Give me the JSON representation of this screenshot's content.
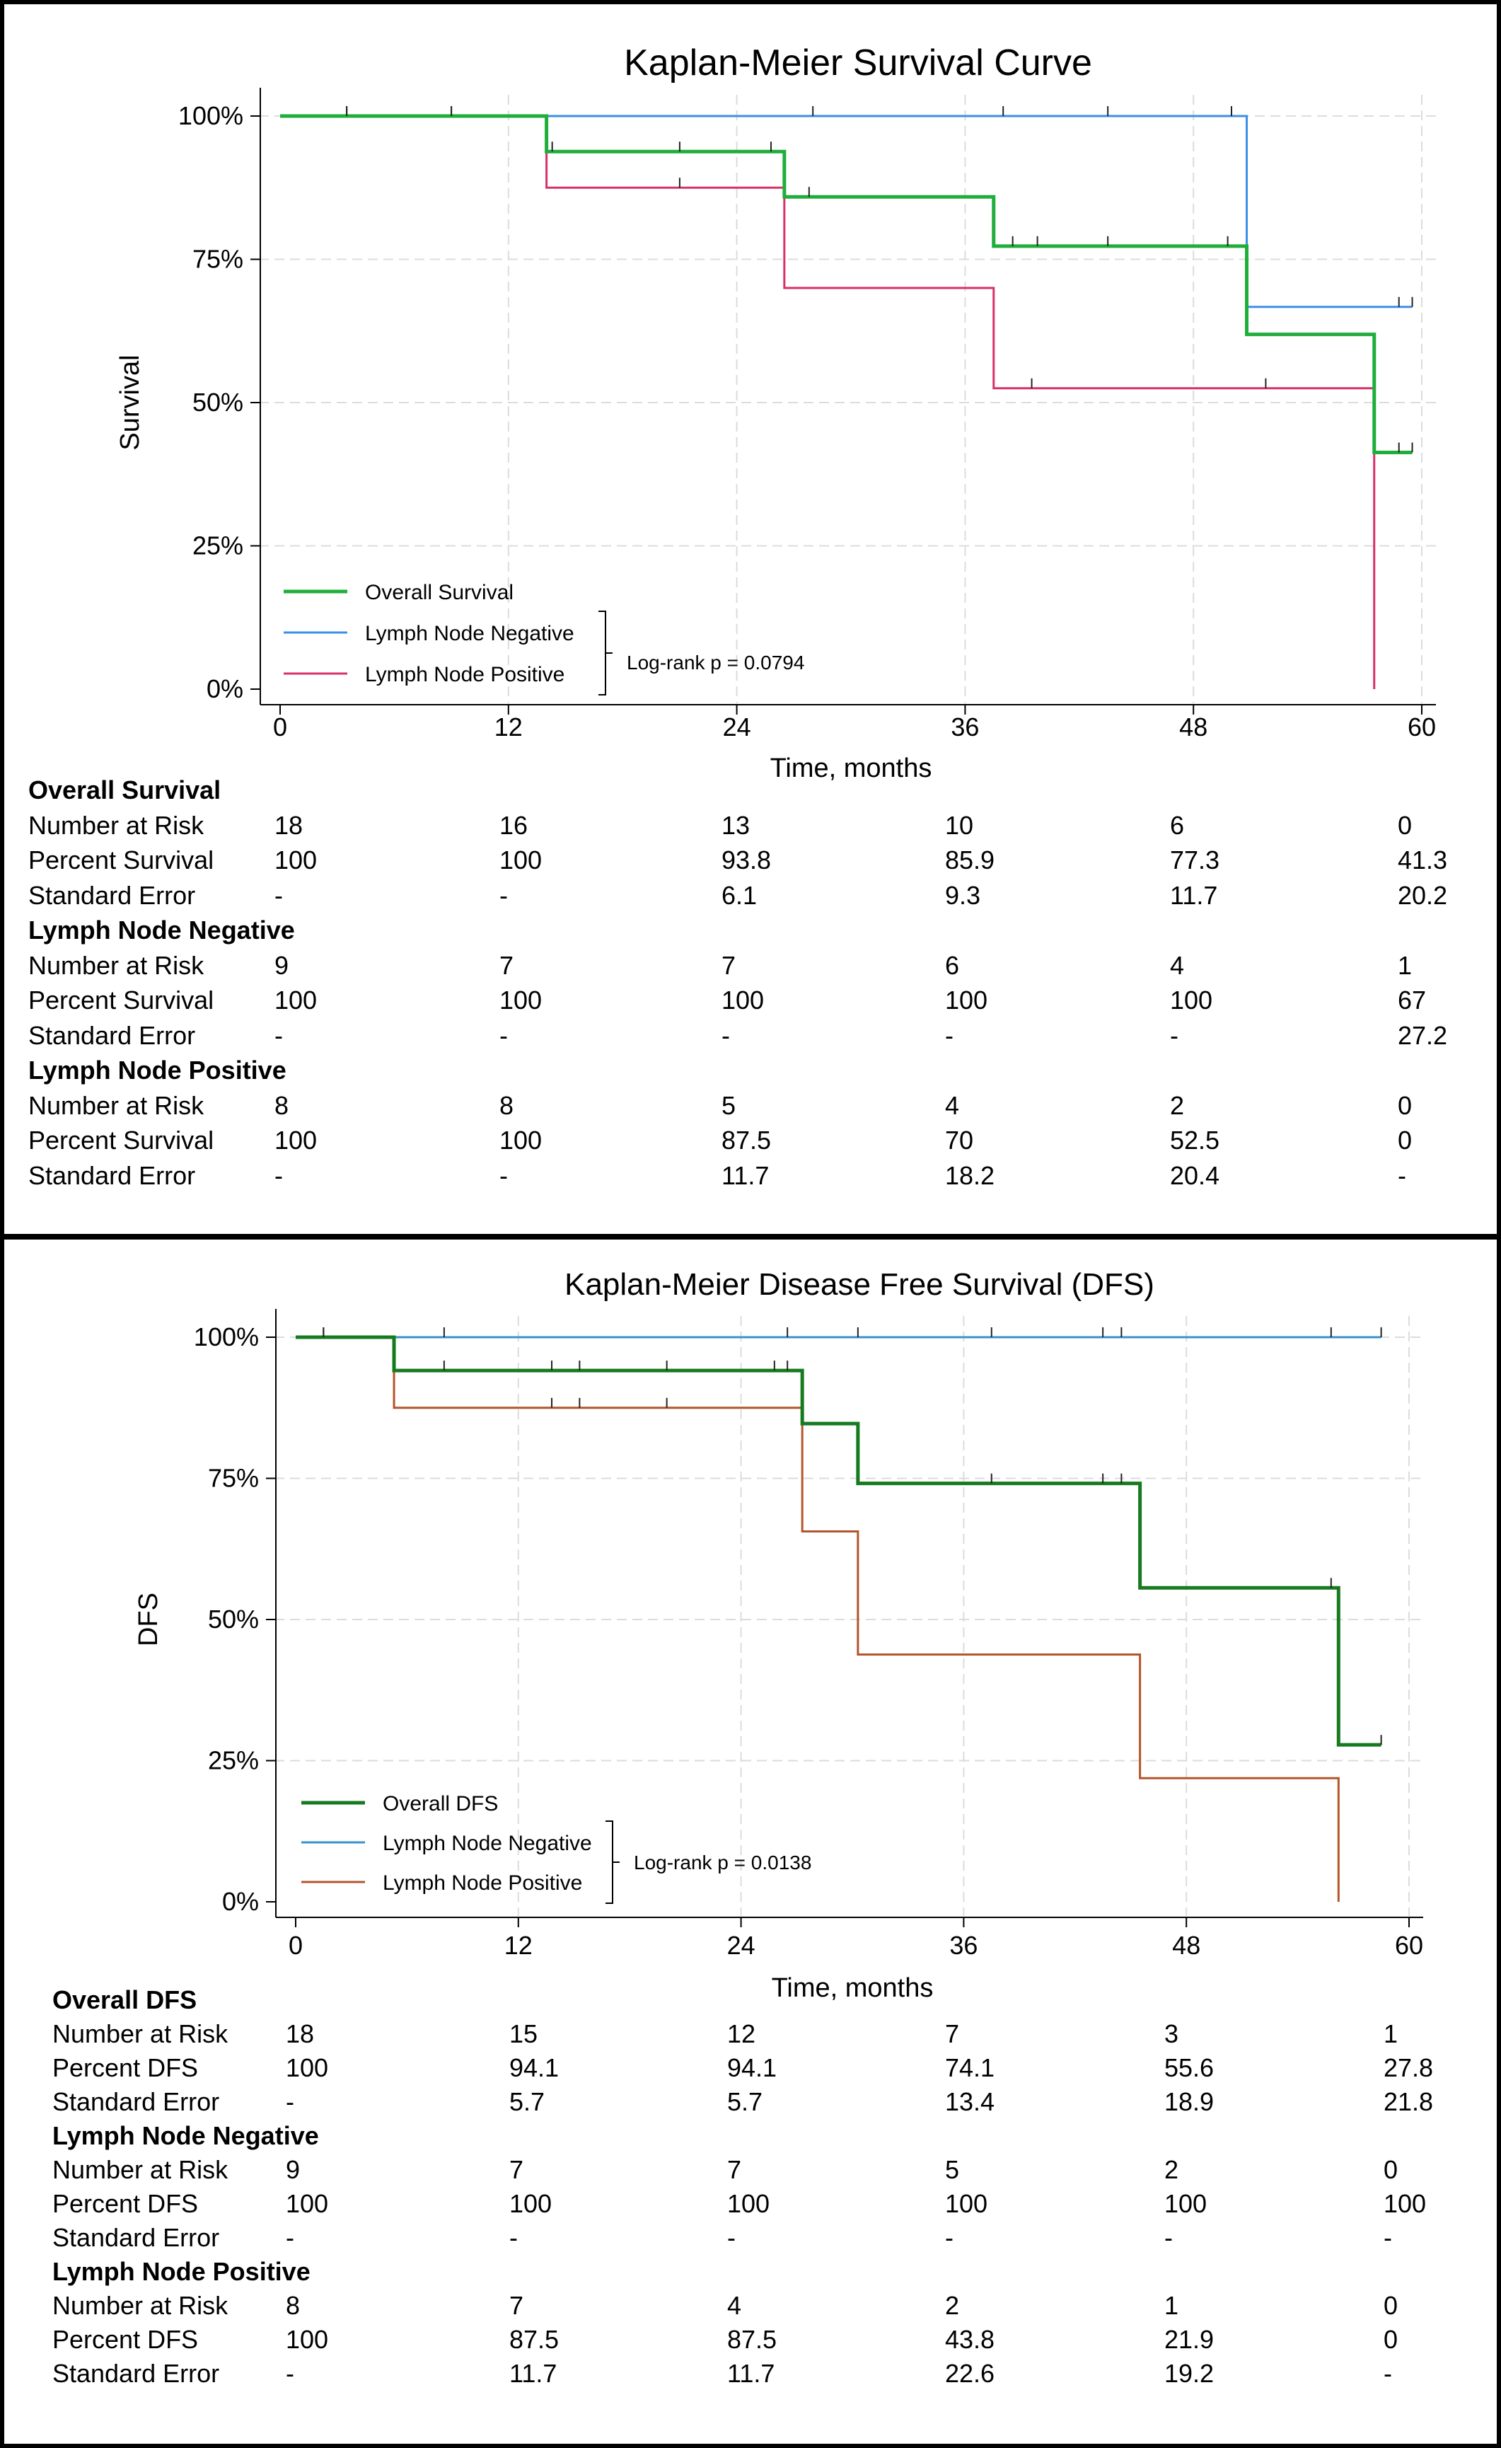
{
  "chart_data": [
    {
      "type": "line",
      "title": "Kaplan-Meier Survival Curve",
      "xlabel": "Time, months",
      "ylabel": "Survival",
      "xlim": [
        0,
        60
      ],
      "ylim": [
        0,
        100
      ],
      "x_ticks": [
        "0",
        "12",
        "24",
        "36",
        "48",
        "60"
      ],
      "y_ticks": [
        "0%",
        "25%",
        "50%",
        "75%",
        "100%"
      ],
      "grid": true,
      "legend_position": "bottom-left",
      "legend_note": "Log-rank  p = 0.0794",
      "series": [
        {
          "name": "Overall Survival",
          "color": "#1fae3a",
          "width": 5,
          "x": [
            0,
            14,
            26.5,
            37.5,
            50.8,
            57.5,
            59.5
          ],
          "y": [
            100,
            93.8,
            85.9,
            77.3,
            61.9,
            41.3,
            41.3
          ],
          "censor_x": [
            3.5,
            9,
            14.3,
            21,
            25.8,
            27.8,
            38.5,
            39.8,
            43.5,
            49.8,
            58.8,
            59.5
          ]
        },
        {
          "name": "Lymph Node Negative",
          "color": "#3b8fe6",
          "width": 3,
          "x": [
            0,
            50.8,
            59.5
          ],
          "y": [
            100,
            66.7,
            66.7
          ],
          "censor_x": [
            3.5,
            9,
            28,
            38,
            43.5,
            50,
            58.8,
            59.5
          ]
        },
        {
          "name": "Lymph Node Positive",
          "color": "#d83068",
          "width": 3,
          "x": [
            0,
            14,
            26.5,
            37.5,
            57.5,
            57.5
          ],
          "y": [
            100,
            87.5,
            70,
            52.5,
            52.5,
            0
          ],
          "censor_x": [
            21,
            39.5,
            51.8
          ]
        }
      ],
      "table": {
        "groups": [
          {
            "name": "Overall Survival",
            "rows": [
              {
                "label": "Number at Risk",
                "values": [
                  "18",
                  "16",
                  "13",
                  "10",
                  "6",
                  "0"
                ]
              },
              {
                "label": "Percent Survival",
                "values": [
                  "100",
                  "100",
                  "93.8",
                  "85.9",
                  "77.3",
                  "41.3"
                ]
              },
              {
                "label": "Standard Error",
                "values": [
                  "-",
                  "-",
                  "6.1",
                  "9.3",
                  "11.7",
                  "20.2"
                ]
              }
            ]
          },
          {
            "name": "Lymph Node Negative",
            "rows": [
              {
                "label": "Number at Risk",
                "values": [
                  "9",
                  "7",
                  "7",
                  "6",
                  "4",
                  "1"
                ]
              },
              {
                "label": "Percent Survival",
                "values": [
                  "100",
                  "100",
                  "100",
                  "100",
                  "100",
                  "67"
                ]
              },
              {
                "label": "Standard Error",
                "values": [
                  "-",
                  "-",
                  "-",
                  "-",
                  "-",
                  "27.2"
                ]
              }
            ]
          },
          {
            "name": "Lymph Node Positive",
            "rows": [
              {
                "label": "Number at Risk",
                "values": [
                  "8",
                  "8",
                  "5",
                  "4",
                  "2",
                  "0"
                ]
              },
              {
                "label": "Percent Survival",
                "values": [
                  "100",
                  "100",
                  "87.5",
                  "70",
                  "52.5",
                  "0"
                ]
              },
              {
                "label": "Standard Error",
                "values": [
                  "-",
                  "-",
                  "11.7",
                  "18.2",
                  "20.4",
                  "-"
                ]
              }
            ]
          }
        ]
      }
    },
    {
      "type": "line",
      "title": "Kaplan-Meier Disease Free Survival (DFS)",
      "xlabel": "Time, months",
      "ylabel": "DFS",
      "xlim": [
        0,
        60
      ],
      "ylim": [
        0,
        100
      ],
      "x_ticks": [
        "0",
        "12",
        "24",
        "36",
        "48",
        "60"
      ],
      "y_ticks": [
        "0%",
        "25%",
        "50%",
        "75%",
        "100%"
      ],
      "grid": true,
      "legend_position": "bottom-left",
      "legend_note": "Log-rank  p = 0.0138",
      "series": [
        {
          "name": "Overall DFS",
          "color": "#167a1e",
          "width": 5,
          "x": [
            0,
            5.3,
            27.3,
            30.3,
            45.5,
            56.2,
            58.5
          ],
          "y": [
            100,
            94.1,
            84.7,
            74.1,
            55.6,
            27.8,
            27.8
          ],
          "censor_x": [
            1.5,
            8,
            13.8,
            15.3,
            20,
            25.8,
            26.5,
            37.5,
            43.5,
            44.5,
            55.8,
            58.5
          ]
        },
        {
          "name": "Lymph Node Negative",
          "color": "#3a92c8",
          "width": 3,
          "x": [
            0,
            58.5
          ],
          "y": [
            100,
            100
          ],
          "censor_x": [
            1.5,
            8,
            26.5,
            30.3,
            37.5,
            43.5,
            44.5,
            55.8,
            58.5
          ]
        },
        {
          "name": "Lymph Node Positive",
          "color": "#b3552a",
          "width": 3,
          "x": [
            0,
            5.3,
            27.3,
            30.3,
            45.5,
            56.2,
            56.2
          ],
          "y": [
            100,
            87.5,
            65.6,
            43.8,
            21.9,
            21.9,
            0
          ],
          "censor_x": [
            13.8,
            15.3,
            20
          ]
        }
      ],
      "table": {
        "groups": [
          {
            "name": "Overall DFS",
            "rows": [
              {
                "label": "Number at Risk",
                "values": [
                  "18",
                  "15",
                  "12",
                  "7",
                  "3",
                  "1"
                ]
              },
              {
                "label": "Percent DFS",
                "values": [
                  "100",
                  "94.1",
                  "94.1",
                  "74.1",
                  "55.6",
                  "27.8"
                ]
              },
              {
                "label": "Standard Error",
                "values": [
                  "-",
                  "5.7",
                  "5.7",
                  "13.4",
                  "18.9",
                  "21.8"
                ]
              }
            ]
          },
          {
            "name": "Lymph Node Negative",
            "rows": [
              {
                "label": "Number at Risk",
                "values": [
                  "9",
                  "7",
                  "7",
                  "5",
                  "2",
                  "0"
                ]
              },
              {
                "label": "Percent DFS",
                "values": [
                  "100",
                  "100",
                  "100",
                  "100",
                  "100",
                  "100"
                ]
              },
              {
                "label": "Standard Error",
                "values": [
                  "-",
                  "-",
                  "-",
                  "-",
                  "-",
                  "-"
                ]
              }
            ]
          },
          {
            "name": "Lymph Node Positive",
            "rows": [
              {
                "label": "Number at Risk",
                "values": [
                  "8",
                  "7",
                  "4",
                  "2",
                  "1",
                  "0"
                ]
              },
              {
                "label": "Percent DFS",
                "values": [
                  "100",
                  "87.5",
                  "87.5",
                  "43.8",
                  "21.9",
                  "0"
                ]
              },
              {
                "label": "Standard Error",
                "values": [
                  "-",
                  "11.7",
                  "11.7",
                  "22.6",
                  "19.2",
                  "-"
                ]
              }
            ]
          }
        ]
      }
    }
  ]
}
